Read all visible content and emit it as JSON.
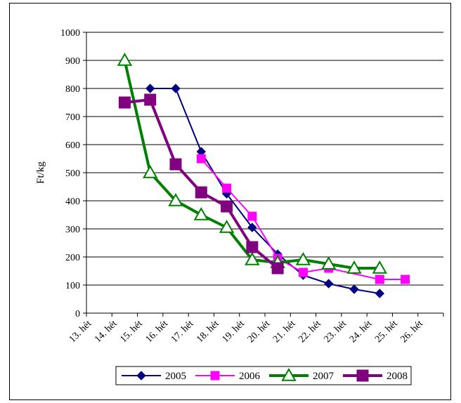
{
  "chart_data": {
    "type": "line",
    "categories": [
      "13. hét",
      "14. hét",
      "15. hét",
      "16. hét",
      "17. hét",
      "18. hét",
      "19. hét",
      "20. hét",
      "21. hét",
      "22. hét",
      "23. hét",
      "24. hét",
      "25. hét",
      "26. hét"
    ],
    "xlabel": "",
    "ylabel": "Ft/kg",
    "ylim": [
      0,
      1000
    ],
    "yticks": [
      "0",
      "100",
      "200",
      "300",
      "400",
      "500",
      "600",
      "700",
      "800",
      "900",
      "1000"
    ],
    "grid": "horizontal",
    "legend_position": "bottom",
    "series": [
      {
        "name": "2005",
        "color": "#000080",
        "marker": "diamond",
        "values": [
          null,
          null,
          800,
          800,
          575,
          425,
          305,
          210,
          135,
          105,
          85,
          70,
          null,
          null
        ]
      },
      {
        "name": "2006",
        "color": "#ff00ff",
        "marker": "square",
        "values": [
          null,
          null,
          null,
          null,
          550,
          445,
          345,
          195,
          145,
          160,
          null,
          120,
          120,
          null
        ]
      },
      {
        "name": "2007",
        "color": "#008000",
        "marker": "triangle",
        "values": [
          null,
          900,
          500,
          400,
          350,
          305,
          190,
          180,
          190,
          175,
          160,
          160,
          null,
          null
        ]
      },
      {
        "name": "2008",
        "color": "#800080",
        "marker": "square-large",
        "values": [
          null,
          750,
          760,
          530,
          430,
          380,
          235,
          160,
          null,
          null,
          null,
          null,
          null,
          null
        ]
      }
    ]
  }
}
